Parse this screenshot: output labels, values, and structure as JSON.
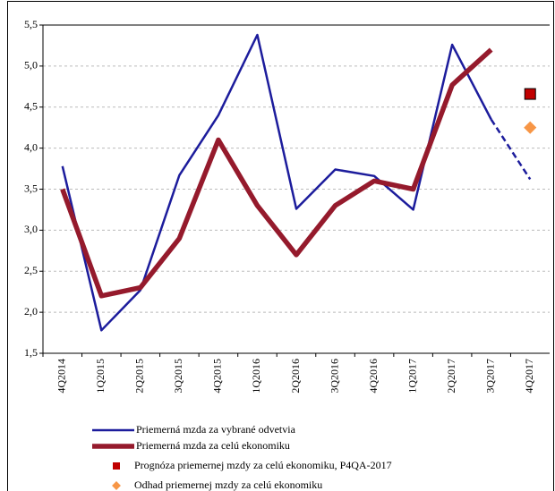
{
  "chart_data": {
    "type": "line",
    "categories": [
      "4Q2014",
      "1Q2015",
      "2Q2015",
      "3Q2015",
      "4Q2015",
      "1Q2016",
      "2Q2016",
      "3Q2016",
      "4Q2016",
      "1Q2017",
      "2Q2017",
      "3Q2017",
      "4Q2017"
    ],
    "series": [
      {
        "name": "Priemerná mzda za vybrané odvetvia",
        "color": "#1c1c9c",
        "width": 2.5,
        "dash_from_index": 11,
        "values": [
          3.78,
          1.78,
          2.27,
          3.67,
          4.4,
          5.38,
          3.26,
          3.74,
          3.66,
          3.25,
          5.26,
          4.35,
          3.62
        ]
      },
      {
        "name": "Priemerná mzda za celú ekonomiku",
        "color": "#951a2c",
        "width": 5.5,
        "values": [
          3.5,
          2.2,
          2.3,
          2.9,
          4.1,
          3.3,
          2.7,
          3.3,
          3.6,
          3.5,
          4.77,
          5.2,
          null
        ]
      },
      {
        "name": "Prognóza priemernej mzdy za celú ekonomiku, P4QA-2017",
        "color": "#c00000",
        "marker": "square",
        "values": [
          null,
          null,
          null,
          null,
          null,
          null,
          null,
          null,
          null,
          null,
          null,
          null,
          4.66
        ]
      },
      {
        "name": "Odhad priemernej mzdy za celú ekonomiku",
        "color": "#f79646",
        "marker": "diamond",
        "values": [
          null,
          null,
          null,
          null,
          null,
          null,
          null,
          null,
          null,
          null,
          null,
          null,
          4.25
        ]
      }
    ],
    "ylim": [
      1.5,
      5.5
    ],
    "yticks": [
      {
        "value": 1.5,
        "label": "1,5"
      },
      {
        "value": 2.0,
        "label": "2,0"
      },
      {
        "value": 2.5,
        "label": "2,5"
      },
      {
        "value": 3.0,
        "label": "3,0"
      },
      {
        "value": 3.5,
        "label": "3,5"
      },
      {
        "value": 4.0,
        "label": "4,0"
      },
      {
        "value": 4.5,
        "label": "4,5"
      },
      {
        "value": 5.0,
        "label": "5,0"
      },
      {
        "value": 5.5,
        "label": "5,5"
      }
    ],
    "grid": true
  }
}
